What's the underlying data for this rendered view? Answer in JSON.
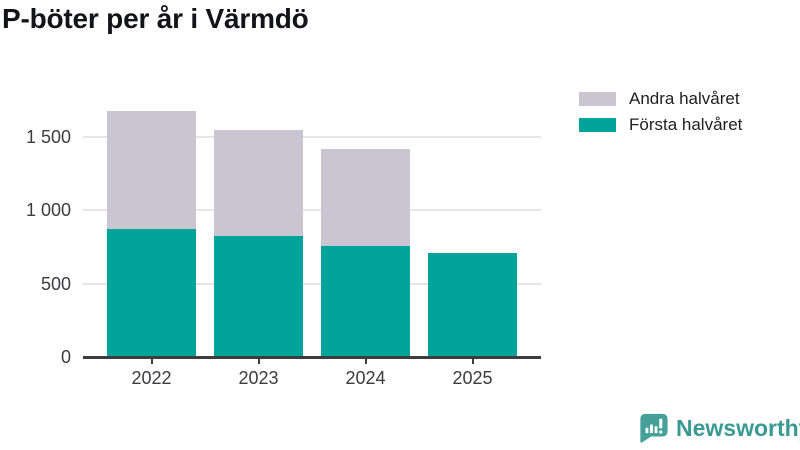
{
  "title": "P-böter per år i Värmdö",
  "brand": {
    "name": "Newsworthy"
  },
  "chart_data": {
    "type": "bar",
    "stacked": true,
    "title": "P-böter per år i Värmdö",
    "categories": [
      "2022",
      "2023",
      "2024",
      "2025"
    ],
    "series": [
      {
        "name": "Första halvåret",
        "color": "#00A49A",
        "values": [
          870,
          825,
          760,
          710
        ]
      },
      {
        "name": "Andra halvåret",
        "color": "#C9C6D1",
        "values": [
          810,
          725,
          660,
          0
        ]
      }
    ],
    "yticks": [
      {
        "value": 0,
        "label": "0"
      },
      {
        "value": 500,
        "label": "500"
      },
      {
        "value": 1000,
        "label": "1 000"
      },
      {
        "value": 1500,
        "label": "1 500"
      }
    ],
    "ylim": [
      0,
      1700
    ],
    "xlabel": "",
    "ylabel": "",
    "grid": "horizontal",
    "legend_position": "top-right",
    "legend_order": [
      "Andra halvåret",
      "Första halvåret"
    ]
  },
  "colors": {
    "background": "#ffffff",
    "axis": "#3d3d3d",
    "grid": "#e6e6e9",
    "tick_label": "#3b3b42",
    "title": "#13131a",
    "brand": "#3a9a93"
  }
}
